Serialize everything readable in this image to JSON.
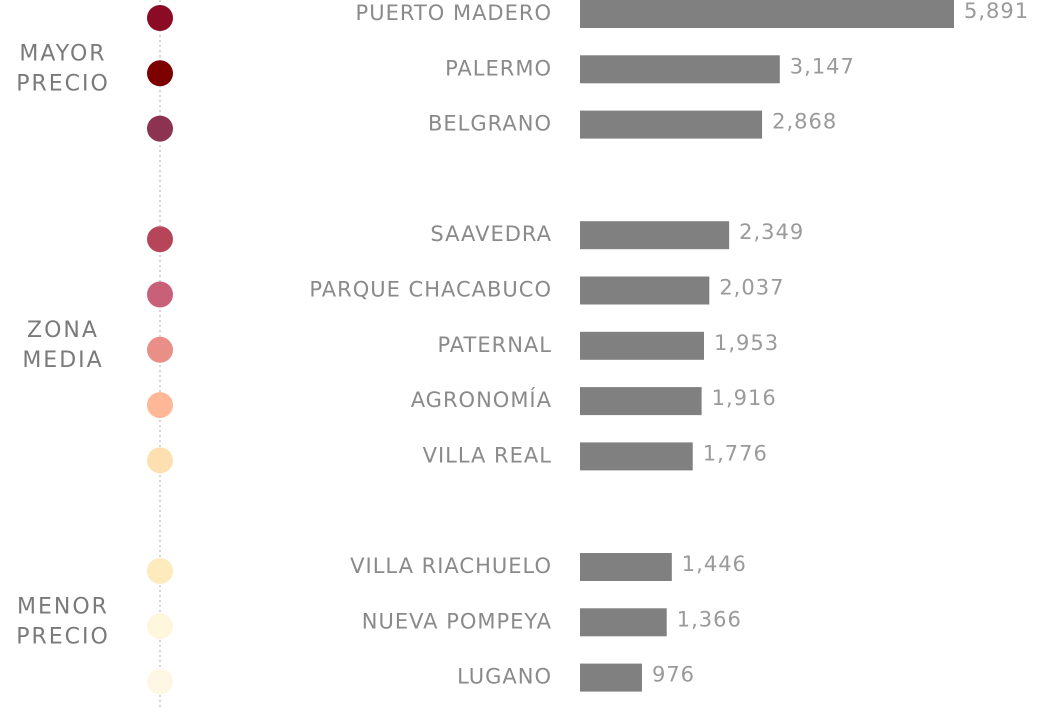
{
  "chart_data": {
    "type": "bar",
    "color": "#808080",
    "groups": [
      {
        "name": [
          "MAYOR",
          "PRECIO"
        ],
        "categories": [
          "PUERTO MADERO",
          "PALERMO",
          "BELGRANO"
        ],
        "values": [
          5891,
          3147,
          2868
        ],
        "value_labels": [
          "5,891",
          "3,147",
          "2,868"
        ],
        "colors": [
          "#8b0a24",
          "#7d0000",
          "#8c3352"
        ]
      },
      {
        "name": [
          "ZONA",
          "MEDIA"
        ],
        "categories": [
          "SAAVEDRA",
          "PARQUE CHACABUCO",
          "PATERNAL",
          "AGRONOMÍA",
          "VILLA REAL"
        ],
        "values": [
          2349,
          2037,
          1953,
          1916,
          1776
        ],
        "value_labels": [
          "2,349",
          "2,037",
          "1,953",
          "1,916",
          "1,776"
        ],
        "colors": [
          "#b6455a",
          "#c96079",
          "#e98f88",
          "#feb898",
          "#fedfb1"
        ]
      },
      {
        "name": [
          "MENOR",
          "PRECIO"
        ],
        "categories": [
          "VILLA RIACHUELO",
          "NUEVA POMPEYA",
          "LUGANO"
        ],
        "values": [
          1446,
          1366,
          976
        ],
        "value_labels": [
          "1,446",
          "1,366",
          "976"
        ],
        "colors": [
          "#feebbd",
          "#fef6dd",
          "#fef7e3"
        ]
      }
    ]
  }
}
